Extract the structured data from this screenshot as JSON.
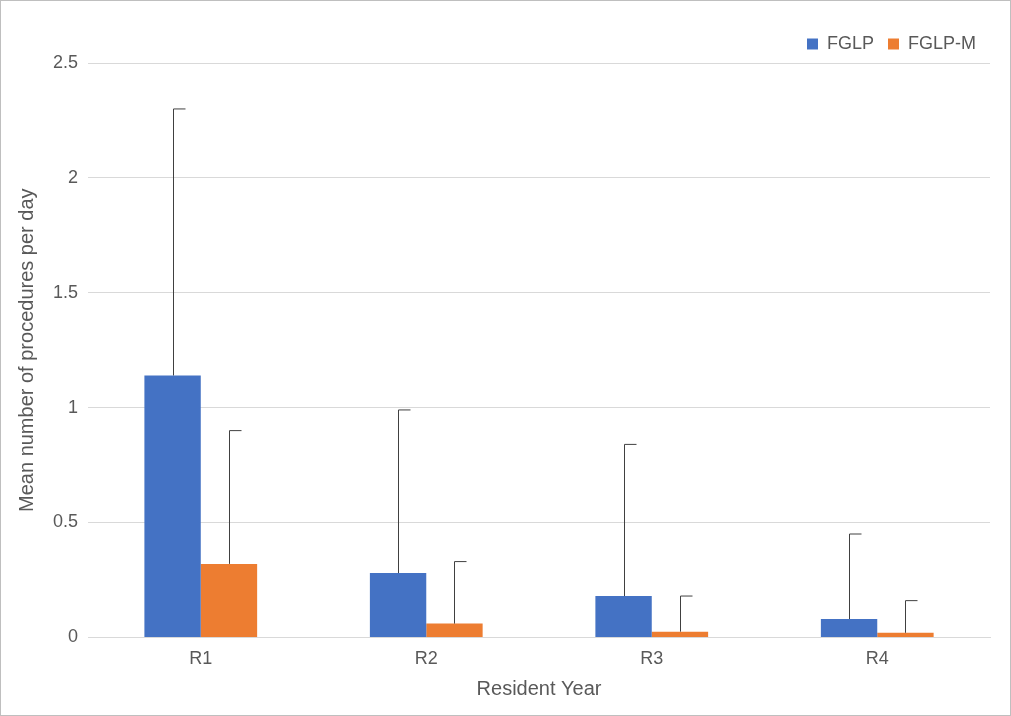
{
  "chart_data": {
    "type": "bar",
    "categories": [
      "R1",
      "R2",
      "R3",
      "R4"
    ],
    "series": [
      {
        "name": "FGLP",
        "color": "#4472c4",
        "values": [
          1.14,
          0.28,
          0.18,
          0.08
        ],
        "errors": [
          1.16,
          0.71,
          0.66,
          0.37
        ]
      },
      {
        "name": "FGLP-M",
        "color": "#ed7d31",
        "values": [
          0.32,
          0.06,
          0.025,
          0.02
        ],
        "errors": [
          0.58,
          0.27,
          0.155,
          0.14
        ]
      }
    ],
    "x_label": "Resident Year",
    "y_label": "Mean number of procedures per day",
    "ylim": [
      0,
      2.5
    ],
    "yticks": [
      0,
      0.5,
      1,
      1.5,
      2,
      2.5
    ],
    "grid": true,
    "legend": "top-right"
  }
}
